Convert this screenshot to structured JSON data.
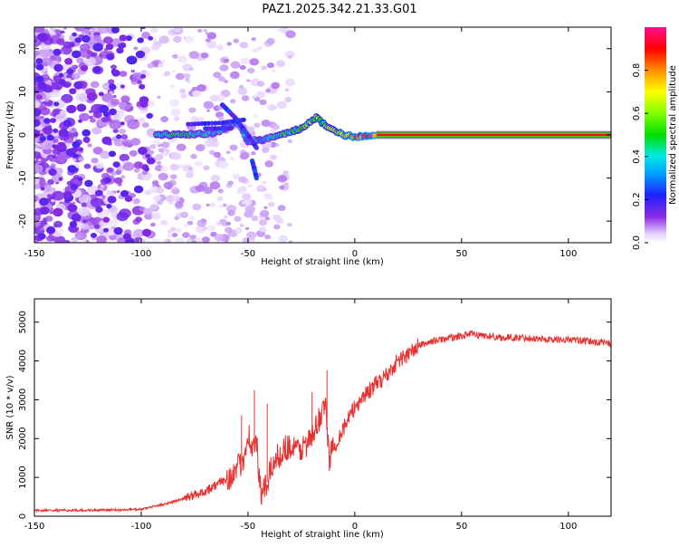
{
  "title": "PAZ1.2025.342.21.33.G01",
  "chart_data": [
    {
      "type": "heatmap",
      "title": "PAZ1.2025.342.21.33.G01",
      "xlabel": "Height of straight line (km)",
      "ylabel": "Frequency (Hz)",
      "xlim": [
        -150,
        120
      ],
      "ylim": [
        -25,
        25
      ],
      "xticks": [
        "-150",
        "-100",
        "-50",
        "0",
        "50",
        "100"
      ],
      "xtick_values": [
        -150,
        -100,
        -50,
        0,
        50,
        100
      ],
      "yticks": [
        "20",
        "10",
        "0",
        "-10",
        "-20"
      ],
      "ytick_values": [
        20,
        10,
        0,
        -10,
        -20
      ],
      "colorbar": {
        "label": "Normalized spectral amplitude",
        "range": [
          0,
          1
        ],
        "ticks": [
          "0.0",
          "0.2",
          "0.4",
          "0.6",
          "0.8"
        ],
        "tick_values": [
          0.0,
          0.2,
          0.4,
          0.6,
          0.8
        ]
      },
      "main_trace": [
        {
          "x": -93,
          "f": 0.0,
          "amp": 0.45
        },
        {
          "x": -80,
          "f": 0.0,
          "amp": 0.45
        },
        {
          "x": -65,
          "f": 0.5,
          "amp": 0.35
        },
        {
          "x": -55,
          "f": 3.0,
          "amp": 0.3
        },
        {
          "x": -50,
          "f": -1.5,
          "amp": 0.35
        },
        {
          "x": -42,
          "f": -1.0,
          "amp": 0.35
        },
        {
          "x": -35,
          "f": 0.0,
          "amp": 0.45
        },
        {
          "x": -25,
          "f": 1.5,
          "amp": 0.5
        },
        {
          "x": -18,
          "f": 4.0,
          "amp": 0.55
        },
        {
          "x": -12,
          "f": 1.5,
          "amp": 0.6
        },
        {
          "x": -5,
          "f": 0.0,
          "amp": 0.75
        },
        {
          "x": 0,
          "f": -0.5,
          "amp": 0.85
        },
        {
          "x": 10,
          "f": 0.0,
          "amp": 0.9
        },
        {
          "x": 120,
          "f": 0.0,
          "amp": 0.95
        }
      ]
    },
    {
      "type": "line",
      "xlabel": "Height of straight line (km)",
      "ylabel": "SNR (10 * v/v)",
      "xlim": [
        -150,
        120
      ],
      "ylim": [
        0,
        5600
      ],
      "xticks": [
        "-150",
        "-100",
        "-50",
        "0",
        "50",
        "100"
      ],
      "xtick_values": [
        -150,
        -100,
        -50,
        0,
        50,
        100
      ],
      "yticks": [
        "0",
        "1000",
        "2000",
        "3000",
        "4000",
        "5000"
      ],
      "ytick_values": [
        0,
        1000,
        2000,
        3000,
        4000,
        5000
      ],
      "series_color": "#e8302e",
      "series": [
        {
          "name": "SNR",
          "x": [
            -150,
            -130,
            -110,
            -100,
            -90,
            -80,
            -70,
            -62,
            -56,
            -52,
            -50,
            -48,
            -46,
            -44,
            -42,
            -38,
            -32,
            -26,
            -20,
            -16,
            -14,
            -12,
            -8,
            -4,
            0,
            4,
            10,
            16,
            20,
            26,
            30,
            36,
            40,
            46,
            54,
            60,
            70,
            80,
            90,
            100,
            110,
            120
          ],
          "y": [
            150,
            150,
            160,
            180,
            300,
            450,
            650,
            900,
            1100,
            1500,
            2200,
            1700,
            1900,
            500,
            700,
            1400,
            1800,
            1700,
            2000,
            2600,
            3000,
            1500,
            2000,
            2400,
            2800,
            3100,
            3400,
            3700,
            4000,
            4200,
            4400,
            4500,
            4550,
            4600,
            4700,
            4650,
            4600,
            4600,
            4550,
            4550,
            4500,
            4450
          ]
        }
      ]
    }
  ]
}
